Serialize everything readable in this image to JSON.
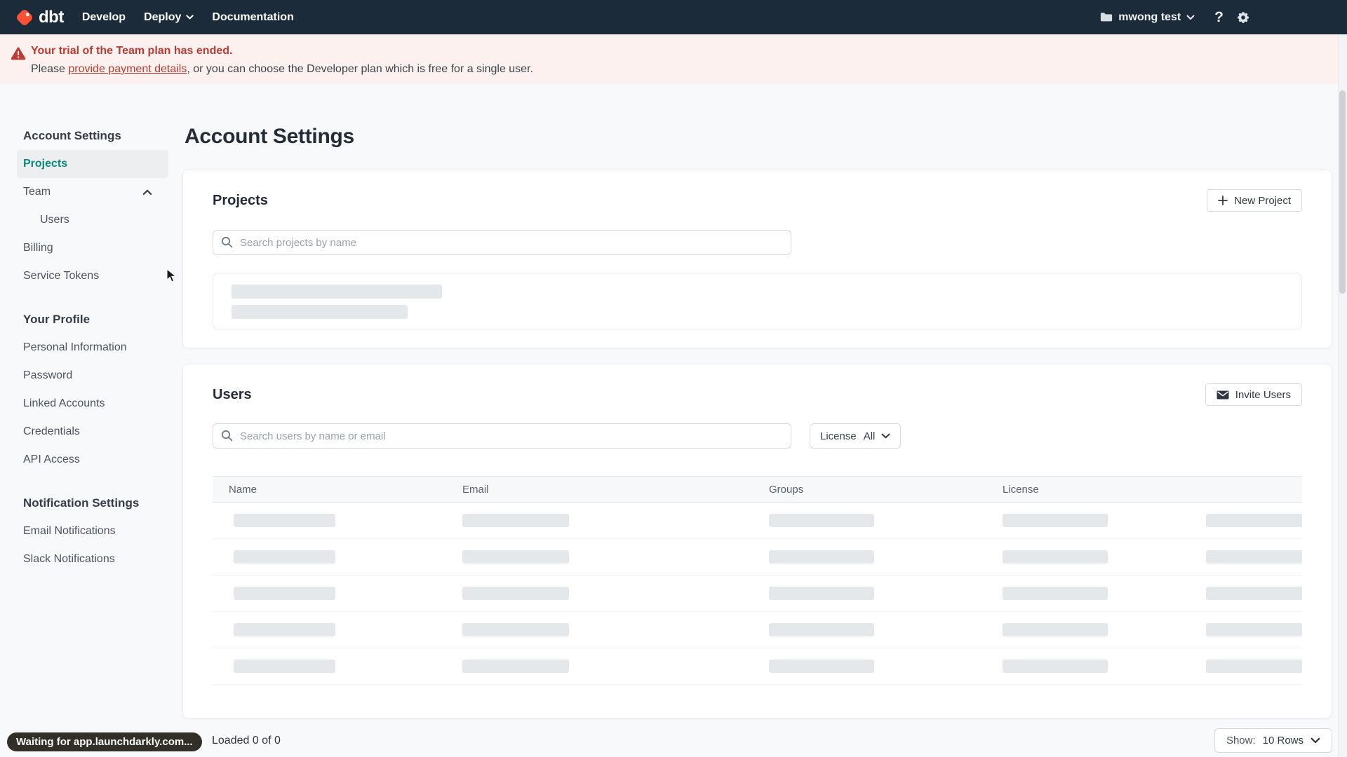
{
  "topnav": {
    "logo_text": "dbt",
    "nav_items": [
      {
        "label": "Develop",
        "chevron": false
      },
      {
        "label": "Deploy",
        "chevron": true
      },
      {
        "label": "Documentation",
        "chevron": false
      }
    ],
    "account_label": "mwong test",
    "help_glyph": "?"
  },
  "banner": {
    "title": "Your trial of the Team plan has ended.",
    "body_prefix": "Please ",
    "link_text": "provide payment details",
    "body_suffix": ", or you can choose the Developer plan which is free for a single user."
  },
  "sidebar": {
    "sections": [
      {
        "header": "Account Settings",
        "items": [
          {
            "label": "Projects",
            "active": true
          },
          {
            "label": "Team",
            "chevron_up": true
          },
          {
            "label": "Users",
            "indent": true
          },
          {
            "label": "Billing"
          },
          {
            "label": "Service Tokens"
          }
        ]
      },
      {
        "header": "Your Profile",
        "items": [
          {
            "label": "Personal Information"
          },
          {
            "label": "Password"
          },
          {
            "label": "Linked Accounts"
          },
          {
            "label": "Credentials"
          },
          {
            "label": "API Access"
          }
        ]
      },
      {
        "header": "Notification Settings",
        "items": [
          {
            "label": "Email Notifications"
          },
          {
            "label": "Slack Notifications"
          }
        ]
      }
    ]
  },
  "main": {
    "page_title": "Account Settings",
    "projects": {
      "title": "Projects",
      "new_button": "New Project",
      "search_placeholder": "Search projects by name",
      "skeleton_bars": 2
    },
    "users": {
      "title": "Users",
      "invite_button": "Invite Users",
      "search_placeholder": "Search users by name or email",
      "license_label": "License",
      "license_value": "All",
      "columns": [
        "Name",
        "Email",
        "Groups",
        "License"
      ],
      "skeleton_row_count": 5,
      "skeleton_bars_per_row": 5
    },
    "footer": {
      "loaded": "Loaded 0 of 0",
      "show_label": "Show:",
      "show_value": "10 Rows"
    }
  },
  "status_bubble": "Waiting for app.launchdarkly.com...",
  "colors": {
    "nav_bg": "#1c2b3a",
    "accent_teal": "#0c8a7e",
    "alert_red": "#b83a31",
    "banner_bg": "#fcf1ef",
    "logo_orange": "#ff5035",
    "skeleton_gray": "#e5e8eb"
  }
}
